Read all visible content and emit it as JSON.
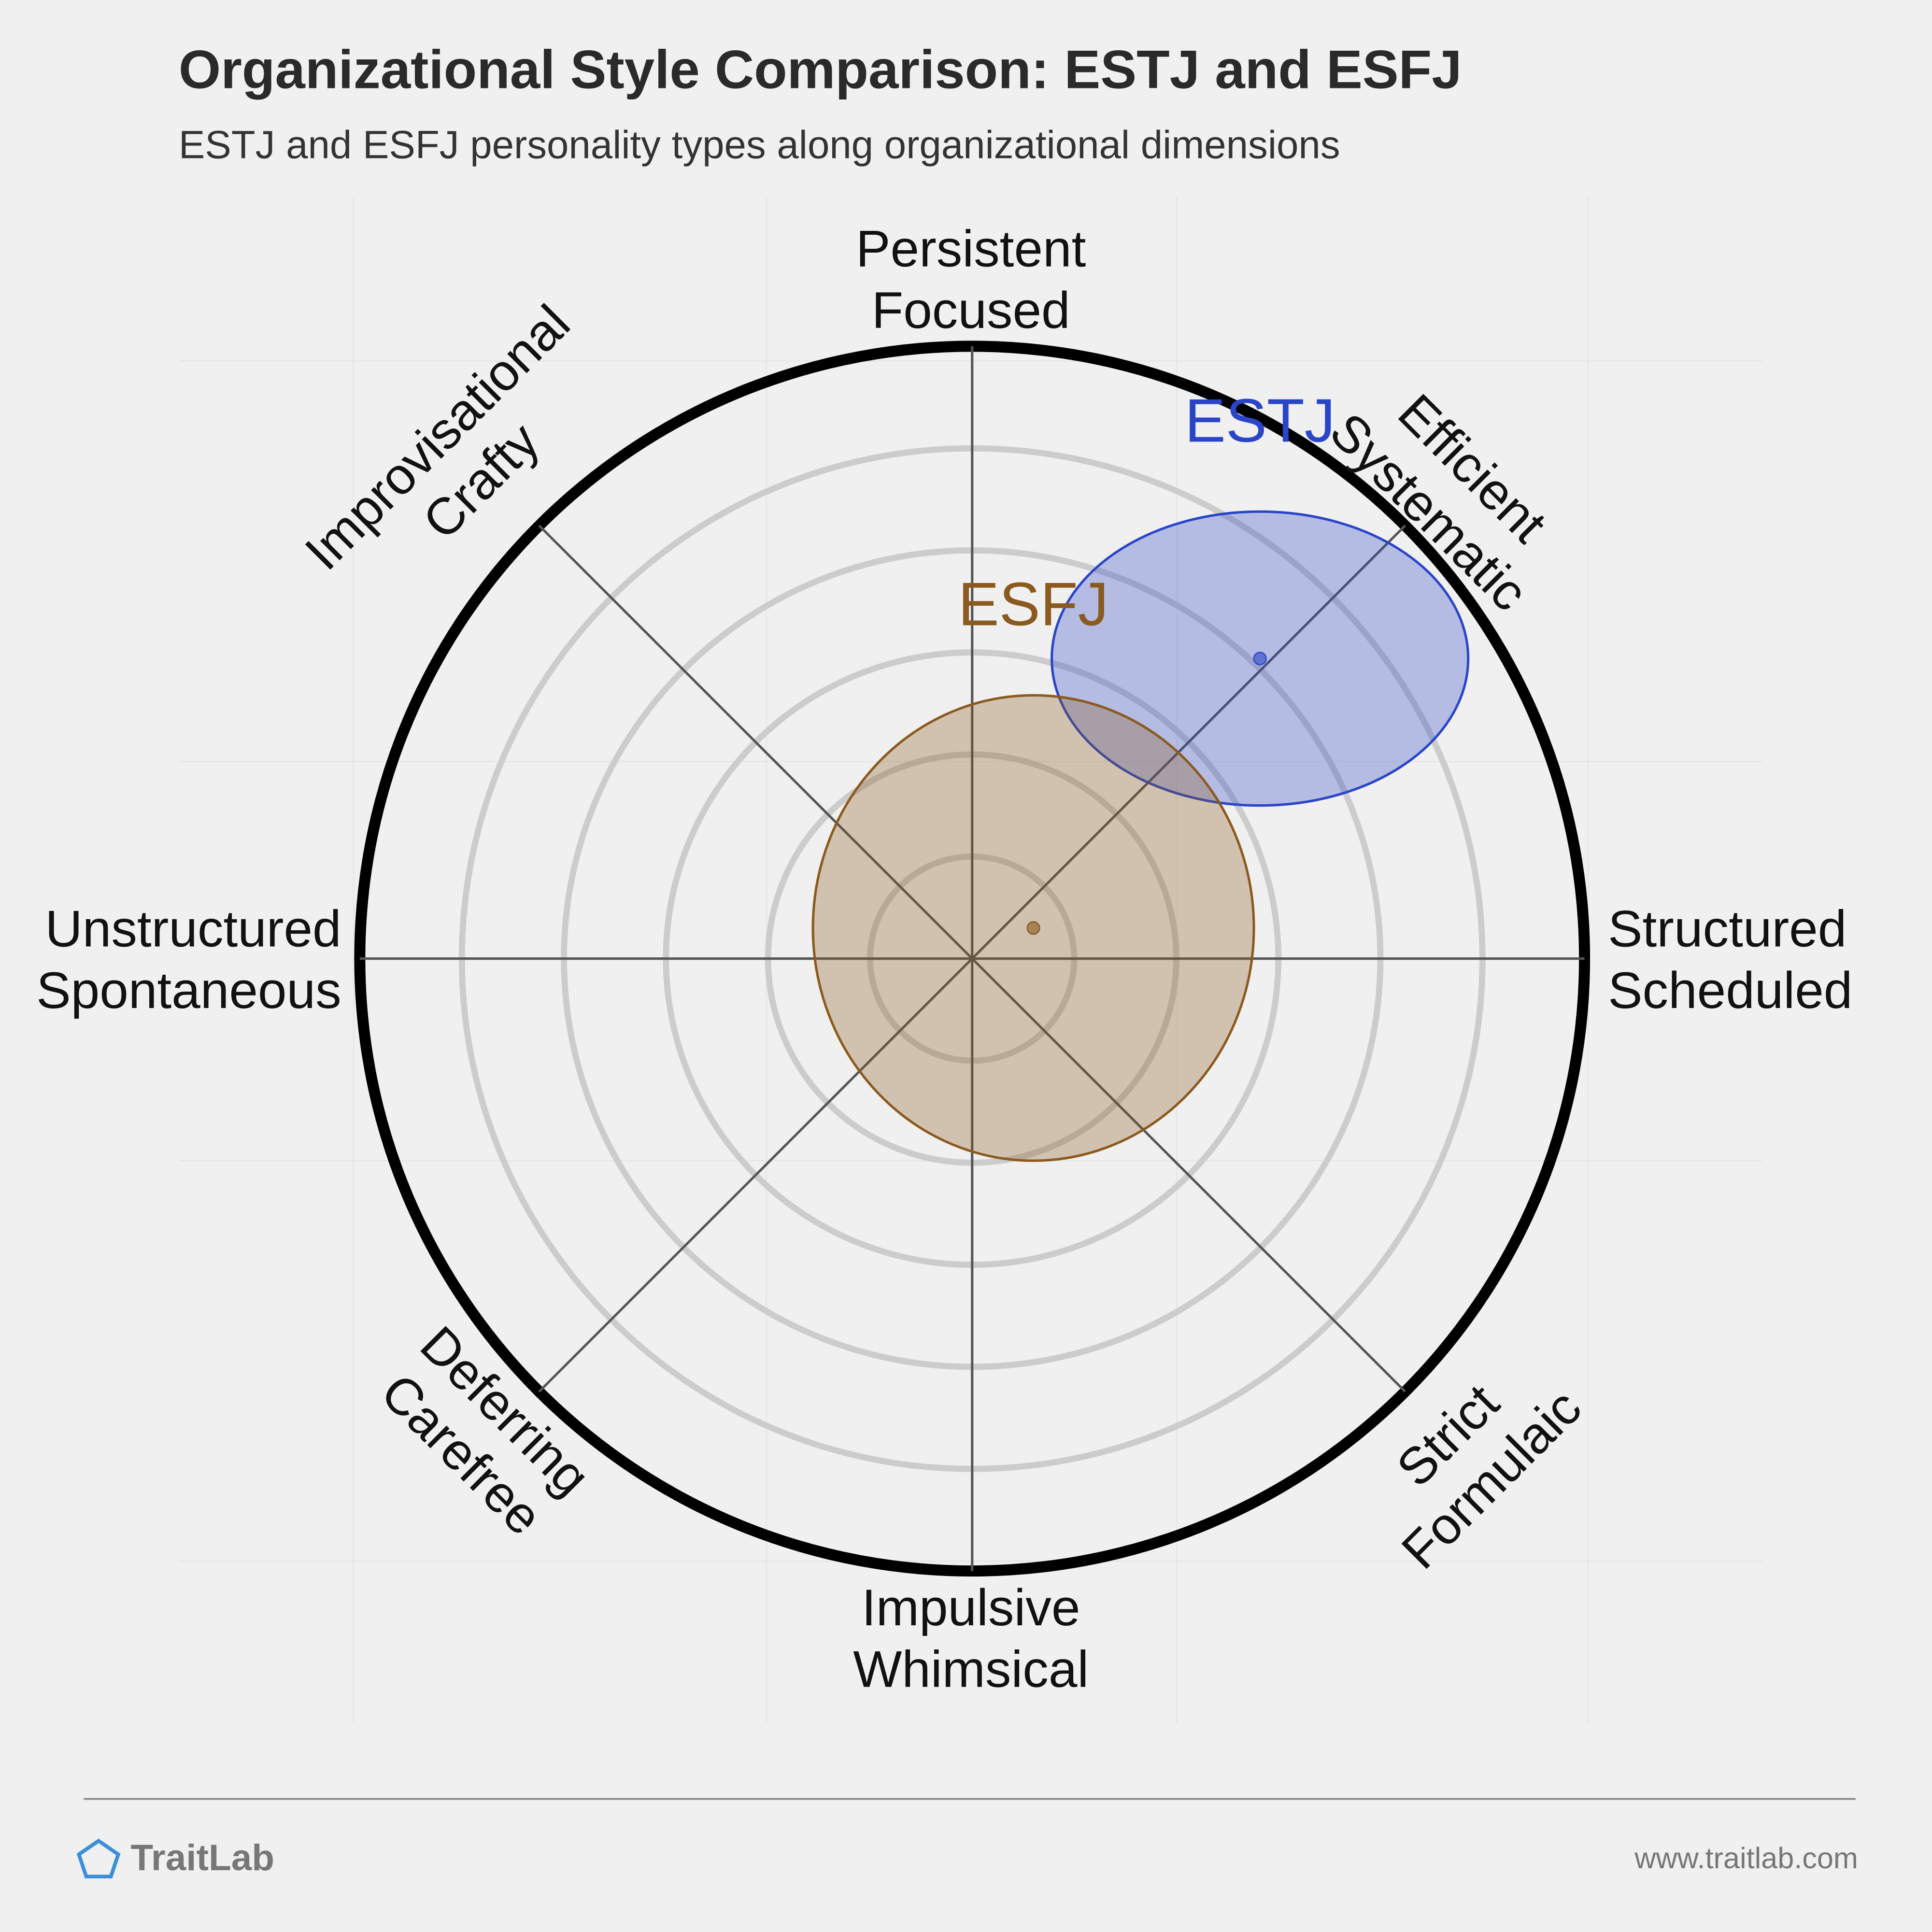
{
  "chart_data": {
    "type": "polar-ellipse",
    "title": "Organizational Style Comparison: ESTJ and ESFJ",
    "subtitle": "ESTJ and ESFJ personality types along organizational dimensions",
    "axes": [
      [
        "Persistent",
        "Focused"
      ],
      [
        "Efficient",
        "Systematic"
      ],
      [
        "Structured",
        "Scheduled"
      ],
      [
        "Strict",
        "Formulaic"
      ],
      [
        "Impulsive",
        "Whimsical"
      ],
      [
        "Deferring",
        "Carefree"
      ],
      [
        "Unstructured",
        "Spontaneous"
      ],
      [
        "Improvisational",
        "Crafty"
      ]
    ],
    "xlim": [
      -1,
      1
    ],
    "ylim": [
      -1,
      1
    ],
    "series": [
      {
        "name": "ESTJ",
        "color": "#2a45c8",
        "x": 0.47,
        "y": 0.49,
        "rx": 0.34,
        "ry": 0.24
      },
      {
        "name": "ESFJ",
        "color": "#8b5a1e",
        "x": 0.1,
        "y": 0.05,
        "rx": 0.36,
        "ry": 0.38
      }
    ]
  },
  "footer": {
    "brand": "TraitLab",
    "url": "www.traitlab.com"
  }
}
